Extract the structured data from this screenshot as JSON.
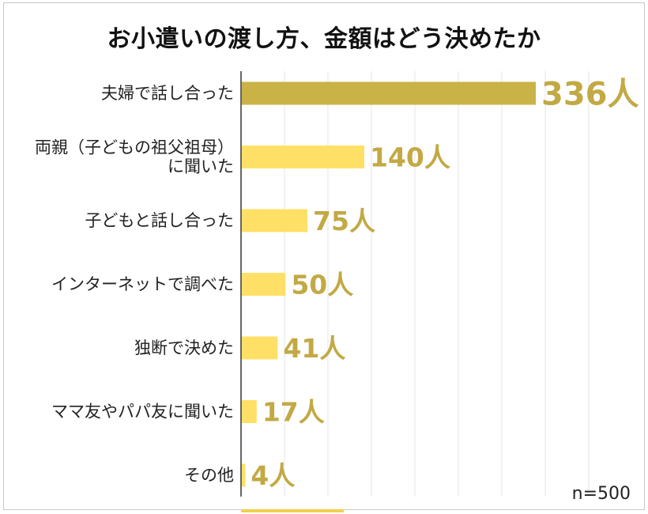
{
  "chart_data": {
    "type": "bar",
    "orientation": "horizontal",
    "title": "お小遣いの渡し方、金額はどう決めたか",
    "categories": [
      [
        "夫婦で話し合った"
      ],
      [
        "両親（子どもの祖父祖母）",
        "に聞いた"
      ],
      [
        "子どもと話し合った"
      ],
      [
        "インターネットで調べた"
      ],
      [
        "独断で決めた"
      ],
      [
        "ママ友やパパ友に聞いた"
      ],
      [
        "その他"
      ]
    ],
    "values": [
      336,
      140,
      75,
      50,
      41,
      17,
      4
    ],
    "value_labels": [
      "336人",
      "140人",
      "75人",
      "50人",
      "41人",
      "17人",
      "4人"
    ],
    "xlim": [
      0,
      480
    ],
    "grid": true,
    "note": "n=500",
    "colors": {
      "highlight_bar": "#c9b347",
      "bar": "#ffe066",
      "value_text": "#c2a944",
      "grid": "#e6e6e6",
      "axis": "#333333"
    }
  }
}
